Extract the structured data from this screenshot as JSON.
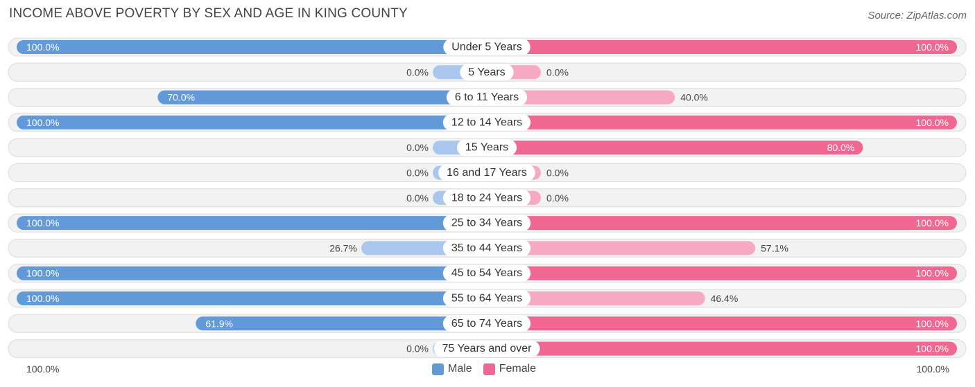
{
  "title": "INCOME ABOVE POVERTY BY SEX AND AGE IN KING COUNTY",
  "source": "Source: ZipAtlas.com",
  "colors": {
    "male_strong": "#6199d9",
    "male_light": "#a9c7ec",
    "female_strong": "#f06792",
    "female_light": "#f7a8c3",
    "row_bg": "#f2f2f2",
    "row_border": "#dcdcdc"
  },
  "legend": {
    "male": "Male",
    "female": "Female"
  },
  "axis": {
    "left_label": "100.0%",
    "right_label": "100.0%"
  },
  "chart_data": {
    "type": "bar",
    "orientation": "horizontal-diverging",
    "title": "INCOME ABOVE POVERTY BY SEX AND AGE IN KING COUNTY",
    "xlim": [
      0,
      100
    ],
    "categories": [
      "Under 5 Years",
      "5 Years",
      "6 to 11 Years",
      "12 to 14 Years",
      "15 Years",
      "16 and 17 Years",
      "18 to 24 Years",
      "25 to 34 Years",
      "35 to 44 Years",
      "45 to 54 Years",
      "55 to 64 Years",
      "65 to 74 Years",
      "75 Years and over"
    ],
    "series": [
      {
        "name": "Male",
        "values": [
          100.0,
          0.0,
          70.0,
          100.0,
          0.0,
          0.0,
          0.0,
          100.0,
          26.7,
          100.0,
          100.0,
          61.9,
          0.0
        ],
        "labels": [
          "100.0%",
          "0.0%",
          "70.0%",
          "100.0%",
          "0.0%",
          "0.0%",
          "0.0%",
          "100.0%",
          "26.7%",
          "100.0%",
          "100.0%",
          "61.9%",
          "0.0%"
        ]
      },
      {
        "name": "Female",
        "values": [
          100.0,
          0.0,
          40.0,
          100.0,
          80.0,
          0.0,
          0.0,
          100.0,
          57.1,
          100.0,
          46.4,
          100.0,
          100.0
        ],
        "labels": [
          "100.0%",
          "0.0%",
          "40.0%",
          "100.0%",
          "80.0%",
          "0.0%",
          "0.0%",
          "100.0%",
          "57.1%",
          "100.0%",
          "46.4%",
          "100.0%",
          "100.0%"
        ]
      }
    ]
  }
}
